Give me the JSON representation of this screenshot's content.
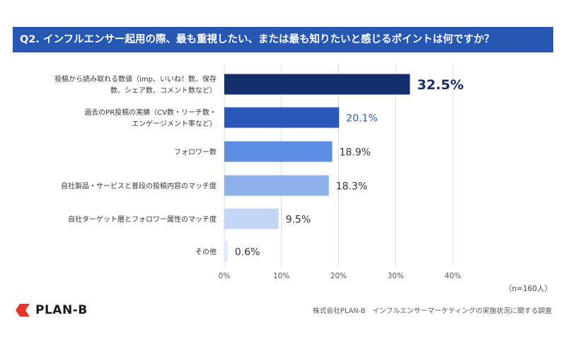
{
  "header": {
    "title": "Q2. インフルエンサー起用の際、最も重視したい、または最も知りたいと感じるポイントは何ですか？"
  },
  "chart_data": {
    "type": "bar",
    "orientation": "horizontal",
    "categories": [
      [
        "投稿から読み取れる数値（imp、いいね！数、保存",
        "数、シェア数、コメント数など）"
      ],
      [
        "過去のPR投稿の実績（CV数・リーチ数・",
        "エンゲージメント率など）"
      ],
      [
        "フォロワー数"
      ],
      [
        "自社製品・サービスと普段の投稿内容のマッチ度"
      ],
      [
        "自社ターゲット層とフォロワー属性のマッチ度"
      ],
      [
        "その他"
      ]
    ],
    "values": [
      32.5,
      20.1,
      18.9,
      18.3,
      9.5,
      0.6
    ],
    "value_labels": [
      "32.5%",
      "20.1%",
      "18.9%",
      "18.3%",
      "9.5%",
      "0.6%"
    ],
    "bar_colors": [
      "#142f6b",
      "#2b59b9",
      "#5b8ee0",
      "#8fb2ec",
      "#c3d6f6",
      "#e0eafa"
    ],
    "label_colors": [
      "#142f6b",
      "#2b59b9",
      "#333333",
      "#333333",
      "#333333",
      "#333333"
    ],
    "xlim": [
      0,
      40
    ],
    "xticks": [
      0,
      10,
      20,
      30,
      40
    ],
    "xtick_labels": [
      "0%",
      "10%",
      "20%",
      "30%",
      "40%"
    ],
    "grid": true
  },
  "note": "（n=160人）",
  "logo": {
    "text": "PLAN-B",
    "color": "#e8332a"
  },
  "source": "株式会社PLAN-B　インフルエンサーマーケティングの実施状況に関する調査"
}
